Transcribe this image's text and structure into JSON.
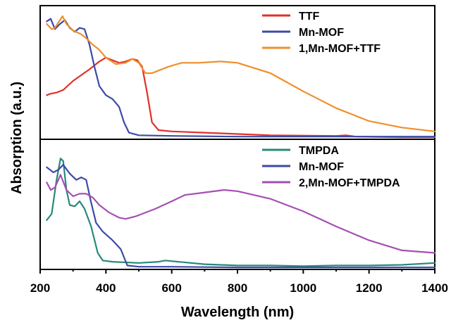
{
  "chart_data": {
    "type": "line",
    "xlabel": "Wavelength (nm)",
    "ylabel": "Absorption (a.u.)",
    "xlim": [
      200,
      1400
    ],
    "x_ticks": [
      200,
      400,
      600,
      800,
      1000,
      1200,
      1400
    ],
    "grid": false,
    "legend_placement": "top-right",
    "panels": [
      {
        "name": "top",
        "ylim": [
          0,
          1
        ],
        "series": [
          {
            "name": "TTF",
            "color": "#e0302a",
            "points": [
              [
                220,
                0.33
              ],
              [
                230,
                0.34
              ],
              [
                250,
                0.35
              ],
              [
                270,
                0.37
              ],
              [
                300,
                0.44
              ],
              [
                350,
                0.53
              ],
              [
                380,
                0.59
              ],
              [
                400,
                0.62
              ],
              [
                420,
                0.6
              ],
              [
                440,
                0.58
              ],
              [
                460,
                0.59
              ],
              [
                480,
                0.61
              ],
              [
                495,
                0.6
              ],
              [
                510,
                0.55
              ],
              [
                525,
                0.35
              ],
              [
                540,
                0.12
              ],
              [
                560,
                0.06
              ],
              [
                600,
                0.05
              ],
              [
                700,
                0.04
              ],
              [
                900,
                0.02
              ],
              [
                1100,
                0.015
              ],
              [
                1130,
                0.02
              ],
              [
                1160,
                0.01
              ],
              [
                1300,
                0.005
              ],
              [
                1400,
                0.005
              ]
            ]
          },
          {
            "name": "Mn-MOF",
            "color": "#3c4aa8",
            "points": [
              [
                220,
                0.9
              ],
              [
                232,
                0.92
              ],
              [
                245,
                0.84
              ],
              [
                260,
                0.88
              ],
              [
                275,
                0.91
              ],
              [
                290,
                0.85
              ],
              [
                305,
                0.82
              ],
              [
                320,
                0.85
              ],
              [
                335,
                0.84
              ],
              [
                350,
                0.72
              ],
              [
                365,
                0.55
              ],
              [
                380,
                0.4
              ],
              [
                400,
                0.33
              ],
              [
                420,
                0.3
              ],
              [
                440,
                0.24
              ],
              [
                455,
                0.12
              ],
              [
                470,
                0.04
              ],
              [
                500,
                0.02
              ],
              [
                600,
                0.015
              ],
              [
                800,
                0.01
              ],
              [
                1000,
                0.01
              ],
              [
                1200,
                0.01
              ],
              [
                1400,
                0.01
              ]
            ]
          },
          {
            "name": "1,Mn-MOF+TTF",
            "color": "#ef8f2c",
            "points": [
              [
                220,
                0.88
              ],
              [
                235,
                0.84
              ],
              [
                245,
                0.85
              ],
              [
                260,
                0.91
              ],
              [
                268,
                0.94
              ],
              [
                280,
                0.88
              ],
              [
                300,
                0.83
              ],
              [
                325,
                0.8
              ],
              [
                340,
                0.77
              ],
              [
                360,
                0.72
              ],
              [
                380,
                0.68
              ],
              [
                400,
                0.62
              ],
              [
                430,
                0.57
              ],
              [
                460,
                0.58
              ],
              [
                480,
                0.61
              ],
              [
                500,
                0.58
              ],
              [
                520,
                0.5
              ],
              [
                540,
                0.5
              ],
              [
                560,
                0.52
              ],
              [
                590,
                0.55
              ],
              [
                630,
                0.58
              ],
              [
                680,
                0.58
              ],
              [
                750,
                0.59
              ],
              [
                800,
                0.58
              ],
              [
                900,
                0.5
              ],
              [
                1000,
                0.36
              ],
              [
                1100,
                0.23
              ],
              [
                1200,
                0.13
              ],
              [
                1300,
                0.08
              ],
              [
                1400,
                0.05
              ]
            ]
          }
        ]
      },
      {
        "name": "bottom",
        "ylim": [
          0,
          1
        ],
        "series": [
          {
            "name": "TMPDA",
            "color": "#28887a",
            "points": [
              [
                220,
                0.38
              ],
              [
                235,
                0.43
              ],
              [
                250,
                0.7
              ],
              [
                262,
                0.87
              ],
              [
                270,
                0.85
              ],
              [
                280,
                0.62
              ],
              [
                290,
                0.5
              ],
              [
                305,
                0.49
              ],
              [
                320,
                0.53
              ],
              [
                335,
                0.47
              ],
              [
                355,
                0.33
              ],
              [
                375,
                0.12
              ],
              [
                390,
                0.06
              ],
              [
                420,
                0.05
              ],
              [
                500,
                0.04
              ],
              [
                560,
                0.05
              ],
              [
                580,
                0.06
              ],
              [
                620,
                0.05
              ],
              [
                700,
                0.03
              ],
              [
                800,
                0.02
              ],
              [
                900,
                0.02
              ],
              [
                1000,
                0.015
              ],
              [
                1100,
                0.02
              ],
              [
                1200,
                0.02
              ],
              [
                1300,
                0.025
              ],
              [
                1400,
                0.04
              ]
            ]
          },
          {
            "name": "Mn-MOF",
            "color": "#3c4aa8",
            "points": [
              [
                220,
                0.8
              ],
              [
                240,
                0.76
              ],
              [
                255,
                0.78
              ],
              [
                270,
                0.82
              ],
              [
                290,
                0.75
              ],
              [
                310,
                0.7
              ],
              [
                325,
                0.72
              ],
              [
                340,
                0.7
              ],
              [
                355,
                0.52
              ],
              [
                370,
                0.36
              ],
              [
                390,
                0.29
              ],
              [
                420,
                0.22
              ],
              [
                445,
                0.15
              ],
              [
                465,
                0.02
              ],
              [
                500,
                0.01
              ],
              [
                600,
                0.01
              ],
              [
                800,
                0.005
              ],
              [
                1000,
                0.005
              ],
              [
                1200,
                0.005
              ],
              [
                1400,
                0.005
              ]
            ]
          },
          {
            "name": "2,Mn-MOF+TMPDA",
            "color": "#a54fb3",
            "points": [
              [
                220,
                0.68
              ],
              [
                232,
                0.62
              ],
              [
                245,
                0.64
              ],
              [
                262,
                0.74
              ],
              [
                280,
                0.62
              ],
              [
                300,
                0.57
              ],
              [
                320,
                0.59
              ],
              [
                340,
                0.59
              ],
              [
                360,
                0.56
              ],
              [
                380,
                0.5
              ],
              [
                410,
                0.44
              ],
              [
                440,
                0.4
              ],
              [
                460,
                0.39
              ],
              [
                490,
                0.41
              ],
              [
                550,
                0.47
              ],
              [
                600,
                0.53
              ],
              [
                640,
                0.58
              ],
              [
                700,
                0.6
              ],
              [
                760,
                0.62
              ],
              [
                800,
                0.61
              ],
              [
                850,
                0.58
              ],
              [
                900,
                0.55
              ],
              [
                1000,
                0.45
              ],
              [
                1100,
                0.33
              ],
              [
                1200,
                0.22
              ],
              [
                1300,
                0.14
              ],
              [
                1400,
                0.12
              ]
            ]
          }
        ]
      }
    ]
  }
}
